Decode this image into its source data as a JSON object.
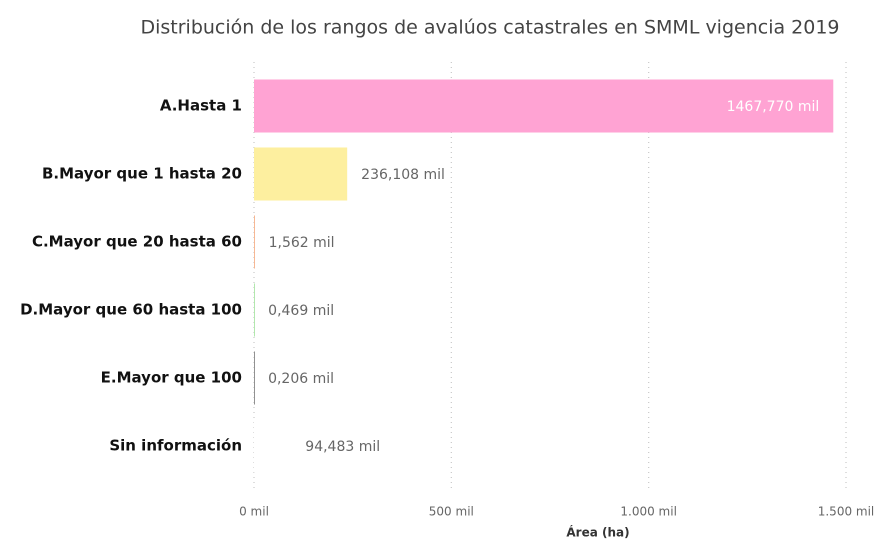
{
  "chart_data": {
    "type": "bar",
    "title": "Distribución de los rangos de avalúos catastrales en SMML vigencia 2019",
    "x_label": "Área (ha)",
    "categories": [
      "A.Hasta 1",
      "B.Mayor que 1 hasta 20",
      "C.Mayor que 20 hasta 60",
      "D.Mayor que 60 hasta 100",
      "E.Mayor que 100",
      "Sin información"
    ],
    "values": [
      1467.77,
      236.108,
      1.562,
      0.469,
      0.206,
      94.483
    ],
    "value_labels": [
      "1467,770 mil",
      "236,108 mil",
      "1,562 mil",
      "0,469 mil",
      "0,206 mil",
      "94,483 mil"
    ],
    "colors": [
      "#ffa3d3",
      "#fdef9f",
      "#f5a77a",
      "#9fe39a",
      "#777777",
      "#ffffff"
    ],
    "xlim": [
      0,
      1500
    ],
    "xticks": [
      {
        "value": 0,
        "label": "0 mil"
      },
      {
        "value": 500,
        "label": "500 mil"
      },
      {
        "value": 1000,
        "label": "1.000 mil"
      },
      {
        "value": 1500,
        "label": "1.500 mil"
      }
    ],
    "grid": true
  }
}
